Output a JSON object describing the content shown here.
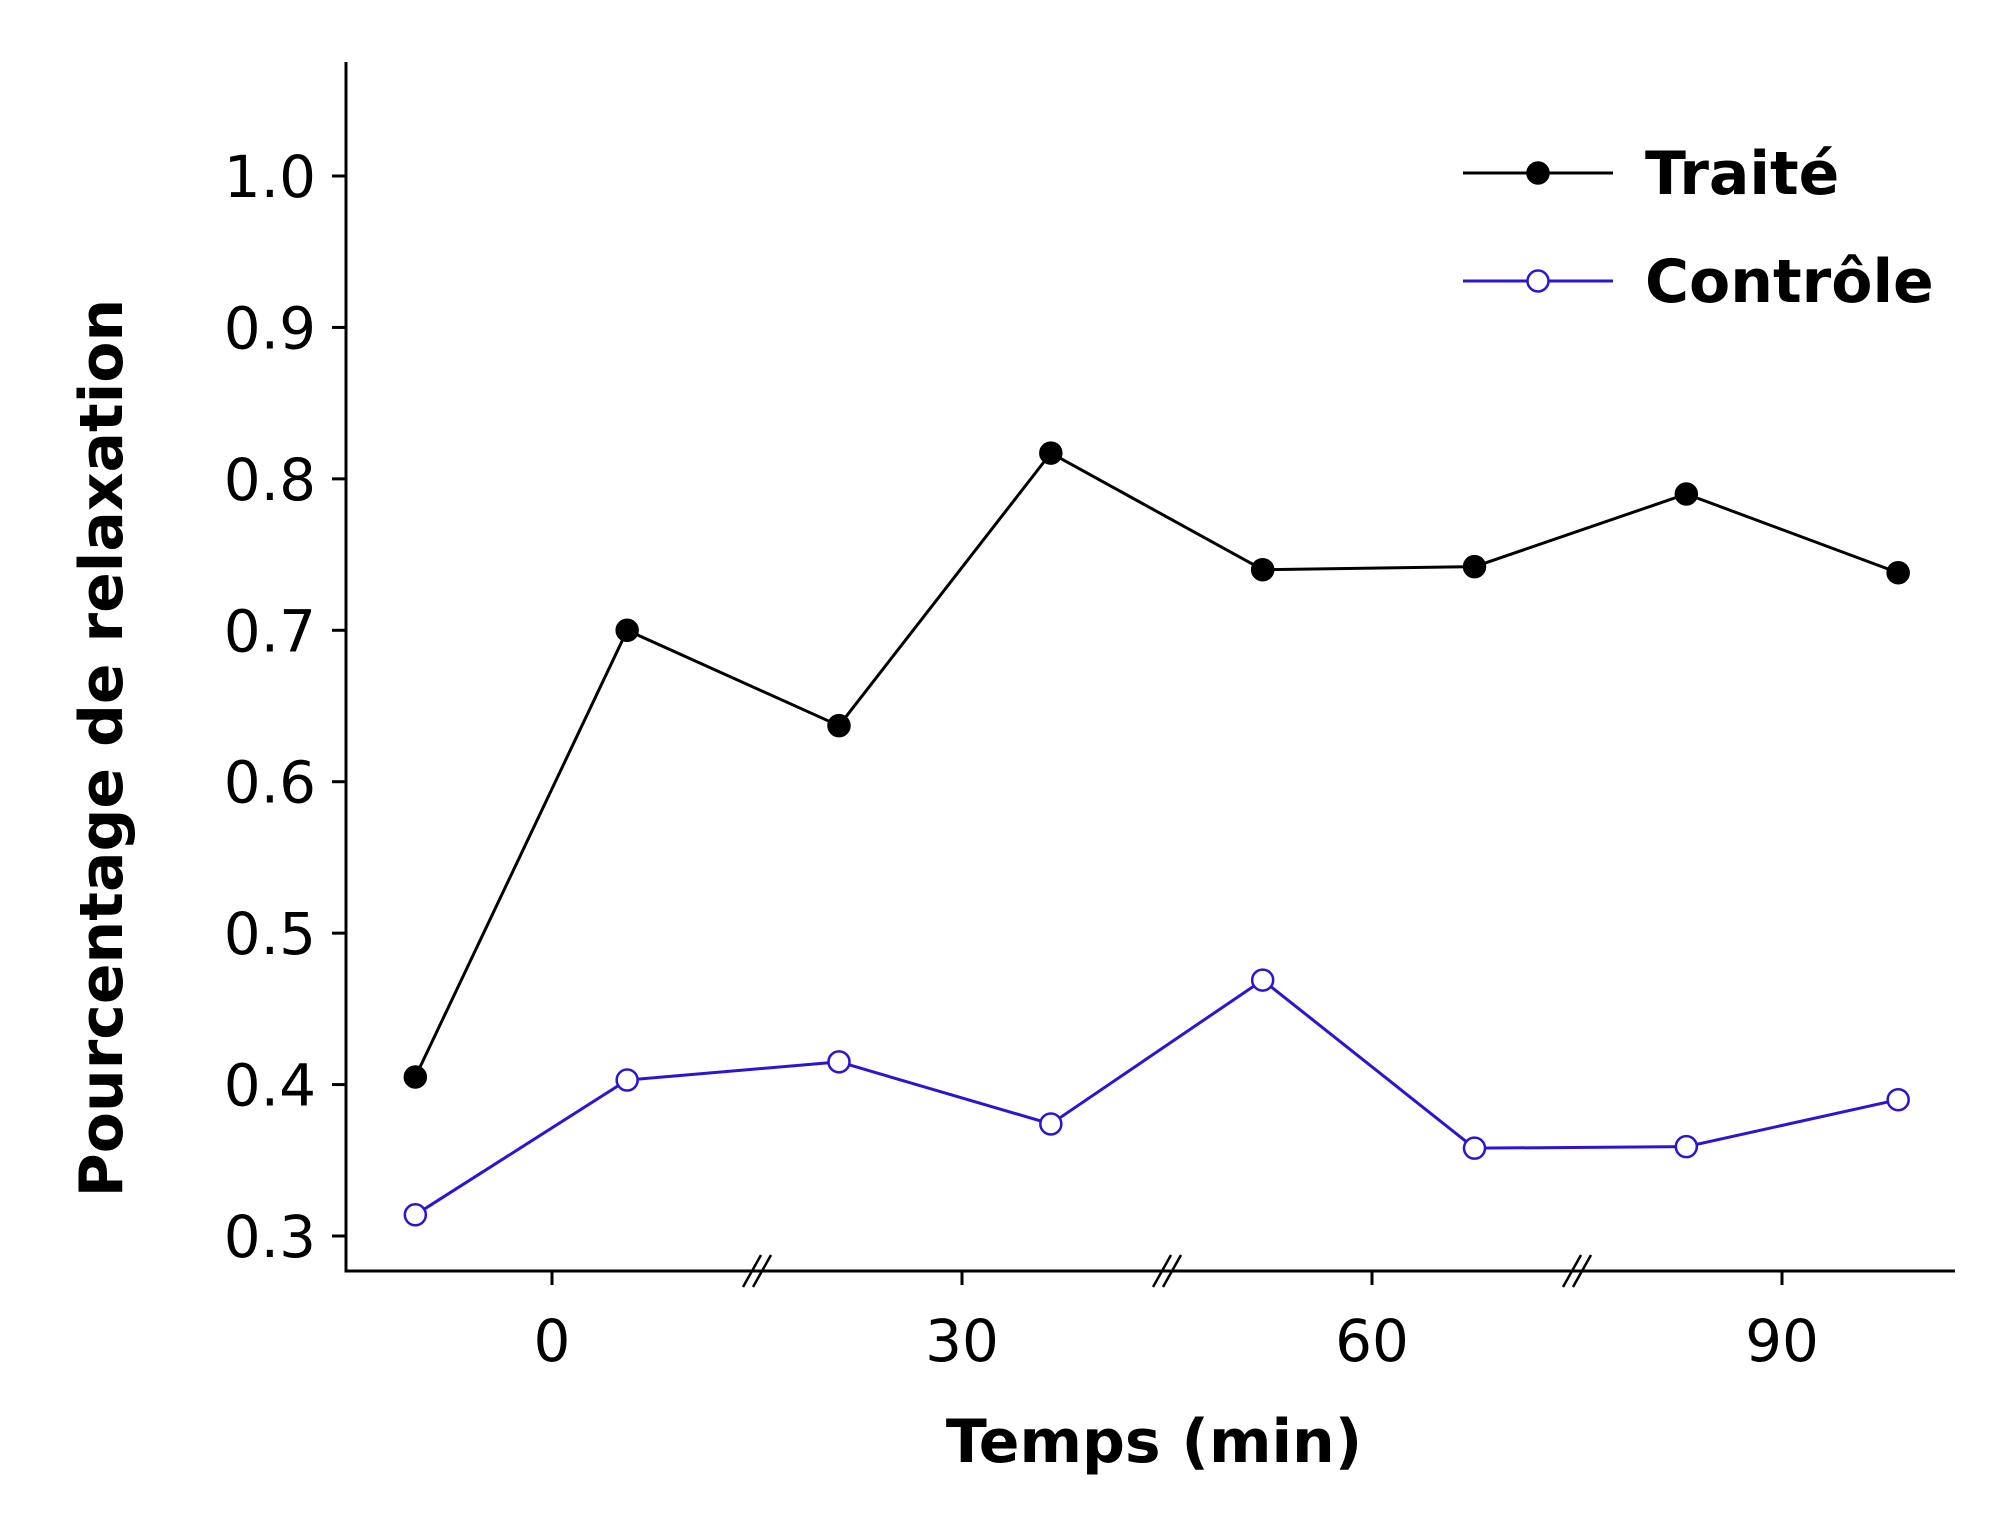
{
  "chart_data": {
    "type": "line",
    "title": "",
    "xlabel": "Temps (min)",
    "ylabel": "Pourcentage de relaxation",
    "xlim": [
      -15,
      103
    ],
    "ylim": [
      0.28,
      1.07
    ],
    "xticks": [
      0,
      30,
      60,
      90
    ],
    "xtick_labels": [
      "0",
      "30",
      "60",
      "90"
    ],
    "yticks": [
      0.3,
      0.4,
      0.5,
      0.6,
      0.7,
      0.8,
      0.9,
      1.0
    ],
    "ytick_labels": [
      "0.3",
      "0.4",
      "0.5",
      "0.6",
      "0.7",
      "0.8",
      "0.9",
      "1.0"
    ],
    "axis_breaks_x": [
      15,
      45,
      75
    ],
    "grid": false,
    "legend_position": "top-right",
    "series": [
      {
        "name": "Traité",
        "color": "#000000",
        "marker": "filled-circle",
        "x": [
          -10,
          5.5,
          21,
          36.5,
          52,
          67.5,
          83,
          98.5
        ],
        "values": [
          0.405,
          0.7,
          0.637,
          0.817,
          0.74,
          0.742,
          0.79,
          0.738
        ]
      },
      {
        "name": "Contrôle",
        "color": "#2a14d8",
        "marker": "open-circle",
        "x": [
          -10,
          5.5,
          21,
          36.5,
          52,
          67.5,
          83,
          98.5
        ],
        "values": [
          0.314,
          0.403,
          0.415,
          0.374,
          0.469,
          0.358,
          0.359,
          0.39
        ]
      }
    ]
  }
}
